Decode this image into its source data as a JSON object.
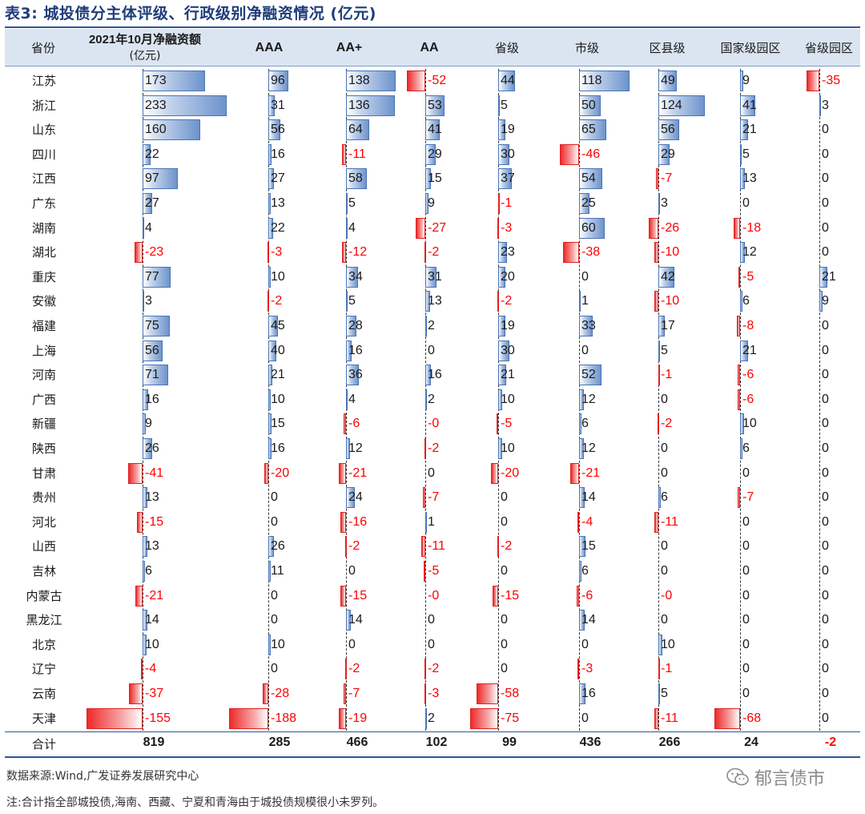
{
  "title": "表3:  城投债分主体评级、行政级别净融资情况 (亿元)",
  "headers": [
    {
      "key": "province",
      "label": "省份"
    },
    {
      "key": "net",
      "label": "2021年10月净融资额",
      "label2": "(亿元)"
    },
    {
      "key": "aaa",
      "label": "AAA"
    },
    {
      "key": "aap",
      "label": "AA+"
    },
    {
      "key": "aa",
      "label": "AA"
    },
    {
      "key": "prov_level",
      "label": "省级"
    },
    {
      "key": "city_level",
      "label": "市级"
    },
    {
      "key": "county_level",
      "label": "区县级"
    },
    {
      "key": "nat_park",
      "label": "国家级园区"
    },
    {
      "key": "prov_park",
      "label": "省级园区"
    }
  ],
  "rows": [
    {
      "name": "江苏",
      "v": [
        173,
        96,
        138,
        -52,
        44,
        118,
        49,
        9,
        -35
      ]
    },
    {
      "name": "浙江",
      "v": [
        233,
        31,
        136,
        53,
        5,
        50,
        124,
        41,
        3
      ]
    },
    {
      "name": "山东",
      "v": [
        160,
        56,
        64,
        41,
        19,
        65,
        56,
        21,
        0
      ]
    },
    {
      "name": "四川",
      "v": [
        22,
        16,
        -11,
        29,
        30,
        -46,
        29,
        5,
        0
      ]
    },
    {
      "name": "江西",
      "v": [
        97,
        27,
        58,
        15,
        37,
        54,
        -7,
        13,
        0
      ]
    },
    {
      "name": "广东",
      "v": [
        27,
        13,
        5,
        9,
        -1,
        25,
        3,
        0,
        0
      ]
    },
    {
      "name": "湖南",
      "v": [
        4,
        22,
        4,
        -27,
        -3,
        60,
        -26,
        -18,
        0
      ]
    },
    {
      "name": "湖北",
      "v": [
        -23,
        -3,
        -12,
        -2,
        23,
        -38,
        -10,
        12,
        0
      ]
    },
    {
      "name": "重庆",
      "v": [
        77,
        10,
        34,
        31,
        20,
        0,
        42,
        -5,
        21
      ]
    },
    {
      "name": "安徽",
      "v": [
        3,
        -2,
        5,
        13,
        -2,
        1,
        -10,
        6,
        9
      ]
    },
    {
      "name": "福建",
      "v": [
        75,
        45,
        28,
        2,
        19,
        33,
        17,
        -8,
        0
      ]
    },
    {
      "name": "上海",
      "v": [
        56,
        40,
        16,
        0,
        30,
        0,
        5,
        21,
        0
      ]
    },
    {
      "name": "河南",
      "v": [
        71,
        21,
        36,
        16,
        21,
        52,
        -1,
        -6,
        0
      ]
    },
    {
      "name": "广西",
      "v": [
        16,
        10,
        4,
        2,
        10,
        12,
        0,
        -6,
        0
      ]
    },
    {
      "name": "新疆",
      "v": [
        9,
        15,
        -6,
        "-0",
        -5,
        6,
        -2,
        10,
        0
      ]
    },
    {
      "name": "陕西",
      "v": [
        26,
        16,
        12,
        -2,
        10,
        12,
        0,
        6,
        0
      ]
    },
    {
      "name": "甘肃",
      "v": [
        -41,
        -20,
        -21,
        0,
        -20,
        -21,
        0,
        0,
        0
      ]
    },
    {
      "name": "贵州",
      "v": [
        13,
        0,
        24,
        -7,
        0,
        14,
        6,
        -7,
        0
      ]
    },
    {
      "name": "河北",
      "v": [
        -15,
        0,
        -16,
        1,
        0,
        -4,
        -11,
        0,
        0
      ]
    },
    {
      "name": "山西",
      "v": [
        13,
        26,
        -2,
        -11,
        -2,
        15,
        0,
        0,
        0
      ]
    },
    {
      "name": "吉林",
      "v": [
        6,
        11,
        0,
        -5,
        0,
        6,
        0,
        0,
        0
      ]
    },
    {
      "name": "内蒙古",
      "v": [
        -21,
        0,
        -15,
        "-0",
        -15,
        -6,
        "-0",
        0,
        0
      ]
    },
    {
      "name": "黑龙江",
      "v": [
        14,
        0,
        14,
        0,
        0,
        14,
        0,
        0,
        0
      ]
    },
    {
      "name": "北京",
      "v": [
        10,
        10,
        0,
        0,
        0,
        0,
        10,
        0,
        0
      ]
    },
    {
      "name": "辽宁",
      "v": [
        -4,
        0,
        -2,
        -2,
        0,
        -3,
        -1,
        0,
        0
      ]
    },
    {
      "name": "云南",
      "v": [
        -37,
        -28,
        -7,
        -3,
        -58,
        16,
        5,
        0,
        0
      ]
    },
    {
      "name": "天津",
      "v": [
        -155,
        -188,
        -19,
        2,
        -75,
        0,
        -11,
        -68,
        0
      ]
    }
  ],
  "totals": {
    "label": "合计",
    "v": [
      819,
      285,
      466,
      102,
      99,
      436,
      266,
      24,
      -2
    ]
  },
  "source": "数据来源:Wind,广发证券发展研究中心",
  "note": "注:合计指全部城投债,海南、西藏、宁夏和青海由于城投债规模很小未罗列。",
  "watermark": "郁言债市",
  "colors": {
    "positive": "#6d93cc",
    "negative": "#ee2a2a",
    "header_bg": "#dbe5f1",
    "rule": "#2f5597"
  }
}
